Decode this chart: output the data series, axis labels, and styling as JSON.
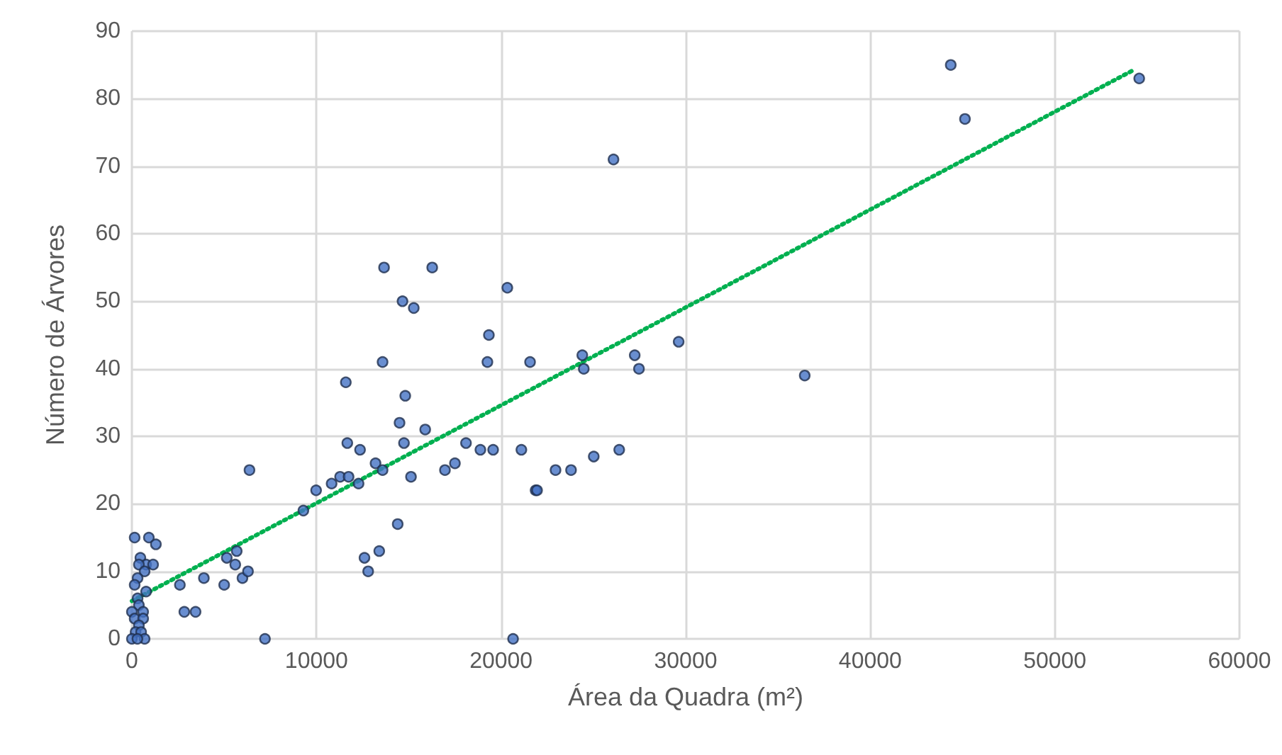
{
  "chart_data": {
    "type": "scatter",
    "xlabel": "Área da Quadra (m²)",
    "ylabel": "Número de Árvores",
    "xlim": [
      0,
      60000
    ],
    "xticks": [
      0,
      10000,
      20000,
      30000,
      40000,
      50000,
      60000
    ],
    "ylim": [
      0,
      90
    ],
    "yticks": [
      0,
      10,
      20,
      30,
      40,
      50,
      60,
      70,
      80,
      90
    ],
    "grid": true,
    "marker": "circle",
    "series": [
      {
        "color": "#4472c4",
        "x": [
          150,
          920,
          1300,
          460,
          770,
          380,
          1150,
          690,
          310,
          150,
          770,
          310,
          380,
          0,
          610,
          150,
          610,
          380,
          200,
          500,
          0,
          690,
          300,
          2600,
          3900,
          5000,
          5140,
          5680,
          5600,
          5990,
          6290,
          2840,
          3450,
          7210,
          6370,
          9290,
          9980,
          10820,
          11280,
          11740,
          12280,
          11590,
          11670,
          12360,
          13200,
          13580,
          15120,
          16960,
          17500,
          14500,
          15890,
          14810,
          13580,
          13660,
          16270,
          20340,
          14660,
          15270,
          19340,
          19260,
          21570,
          14740,
          18100,
          18880,
          19570,
          21100,
          21870,
          24400,
          24480,
          27240,
          27470,
          29620,
          22950,
          23790,
          21950,
          25020,
          26400,
          20650,
          26090,
          36450,
          44360,
          45130,
          54570,
          12600,
          12800,
          13400,
          14400
        ],
        "values": [
          15,
          15,
          14,
          12,
          11,
          11,
          11,
          10,
          9,
          8,
          7,
          6,
          5,
          4,
          4,
          3,
          3,
          2,
          1,
          1,
          0,
          0,
          0,
          8,
          9,
          8,
          12,
          13,
          11,
          9,
          10,
          4,
          4,
          0,
          25,
          19,
          22,
          23,
          24,
          24,
          23,
          38,
          29,
          28,
          26,
          25,
          24,
          25,
          26,
          32,
          31,
          36,
          41,
          55,
          55,
          52,
          50,
          49,
          45,
          41,
          41,
          29,
          29,
          28,
          28,
          28,
          22,
          42,
          40,
          42,
          40,
          44,
          25,
          25,
          22,
          27,
          28,
          0,
          71,
          39,
          85,
          77,
          83,
          12,
          10,
          13,
          17
        ]
      },
      {
        "type": "line",
        "color": "#00b050",
        "line_style": "dotted",
        "marker": "none",
        "x": [
          0,
          54300
        ],
        "values": [
          5.6,
          84.3
        ]
      }
    ]
  }
}
